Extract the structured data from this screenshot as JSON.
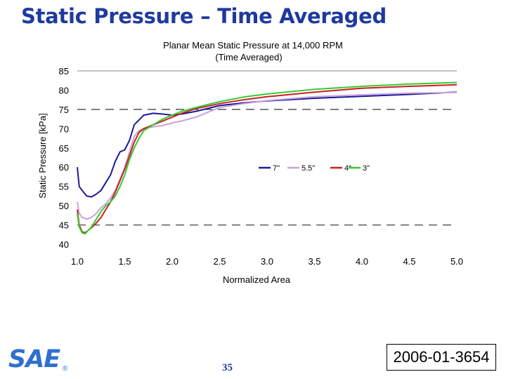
{
  "slide": {
    "title": "Static Pressure – Time Averaged",
    "page_number": "35",
    "paper_id": "2006-01-3654",
    "logo_text": "SAE",
    "logo_mark": "®"
  },
  "chart_data": {
    "type": "line",
    "title": "Planar Mean Static Pressure at 14,000 RPM",
    "subtitle": "(Time Averaged)",
    "xlabel": "Normalized Area",
    "ylabel": "Static Pressure [kPa]",
    "xlim": [
      1.0,
      5.0
    ],
    "ylim": [
      40,
      85
    ],
    "xticks": [
      "1.0",
      "1.5",
      "2.0",
      "2.5",
      "3.0",
      "3.5",
      "4.0",
      "4.5",
      "5.0"
    ],
    "yticks": [
      "40",
      "45",
      "50",
      "55",
      "60",
      "65",
      "70",
      "75",
      "80",
      "85"
    ],
    "reference_lines": [
      75,
      45
    ],
    "grid": false,
    "legend_position": "center-right",
    "series": [
      {
        "name": "7\"",
        "color": "#1a1a9a",
        "x": [
          1.0,
          1.02,
          1.05,
          1.1,
          1.15,
          1.2,
          1.25,
          1.3,
          1.35,
          1.4,
          1.45,
          1.5,
          1.55,
          1.6,
          1.7,
          1.8,
          1.9,
          2.0,
          2.1,
          2.25,
          2.5,
          2.75,
          3.0,
          3.5,
          4.0,
          4.5,
          5.0
        ],
        "y": [
          60,
          55,
          54,
          52.5,
          52.3,
          53,
          54,
          56,
          58,
          61.5,
          64,
          64.5,
          67,
          71,
          73.5,
          74,
          73.8,
          73.5,
          73.8,
          74.5,
          76,
          76.7,
          77.2,
          77.9,
          78.4,
          78.9,
          79.5
        ]
      },
      {
        "name": "5.5\"",
        "color": "#c8a2dc",
        "x": [
          1.0,
          1.02,
          1.05,
          1.1,
          1.15,
          1.2,
          1.25,
          1.3,
          1.35,
          1.4,
          1.45,
          1.5,
          1.55,
          1.6,
          1.65,
          1.7,
          1.8,
          1.9,
          2.0,
          2.1,
          2.25,
          2.5,
          2.75,
          3.0,
          3.5,
          4.0,
          4.5,
          5.0
        ],
        "y": [
          51,
          48,
          47,
          46.5,
          47,
          48,
          49.5,
          50.5,
          52,
          54,
          57,
          60,
          64,
          68,
          69.5,
          70,
          70.5,
          70.8,
          71.5,
          72,
          73,
          75.5,
          76.5,
          77.3,
          78.3,
          78.8,
          79.2,
          79.4
        ]
      },
      {
        "name": "4\"",
        "color": "#cc2020",
        "x": [
          1.0,
          1.02,
          1.05,
          1.08,
          1.1,
          1.15,
          1.2,
          1.25,
          1.3,
          1.35,
          1.4,
          1.45,
          1.5,
          1.55,
          1.6,
          1.65,
          1.7,
          1.8,
          1.9,
          2.0,
          2.1,
          2.25,
          2.5,
          2.75,
          3.0,
          3.5,
          4.0,
          4.5,
          5.0
        ],
        "y": [
          49,
          45,
          43.2,
          43,
          43.3,
          44.3,
          45.5,
          47,
          49,
          51,
          53.5,
          56.5,
          59.5,
          63,
          66.5,
          69,
          70,
          71,
          72,
          73,
          74,
          75.2,
          76.5,
          77.5,
          78.3,
          79.5,
          80.5,
          81,
          81.4
        ]
      },
      {
        "name": "3\"",
        "color": "#33cc33",
        "x": [
          1.0,
          1.02,
          1.05,
          1.08,
          1.1,
          1.15,
          1.2,
          1.25,
          1.3,
          1.35,
          1.4,
          1.45,
          1.5,
          1.55,
          1.6,
          1.65,
          1.7,
          1.8,
          1.9,
          2.0,
          2.1,
          2.25,
          2.5,
          2.75,
          3.0,
          3.5,
          4.0,
          4.5,
          5.0
        ],
        "y": [
          48,
          44.5,
          43,
          42.7,
          43.2,
          44.5,
          46.5,
          48.5,
          50,
          51,
          52.5,
          55,
          58,
          62,
          65,
          67.5,
          69.5,
          71,
          72.5,
          73.5,
          74.5,
          75.5,
          77,
          78.2,
          79,
          80.2,
          81,
          81.6,
          82
        ]
      }
    ]
  }
}
